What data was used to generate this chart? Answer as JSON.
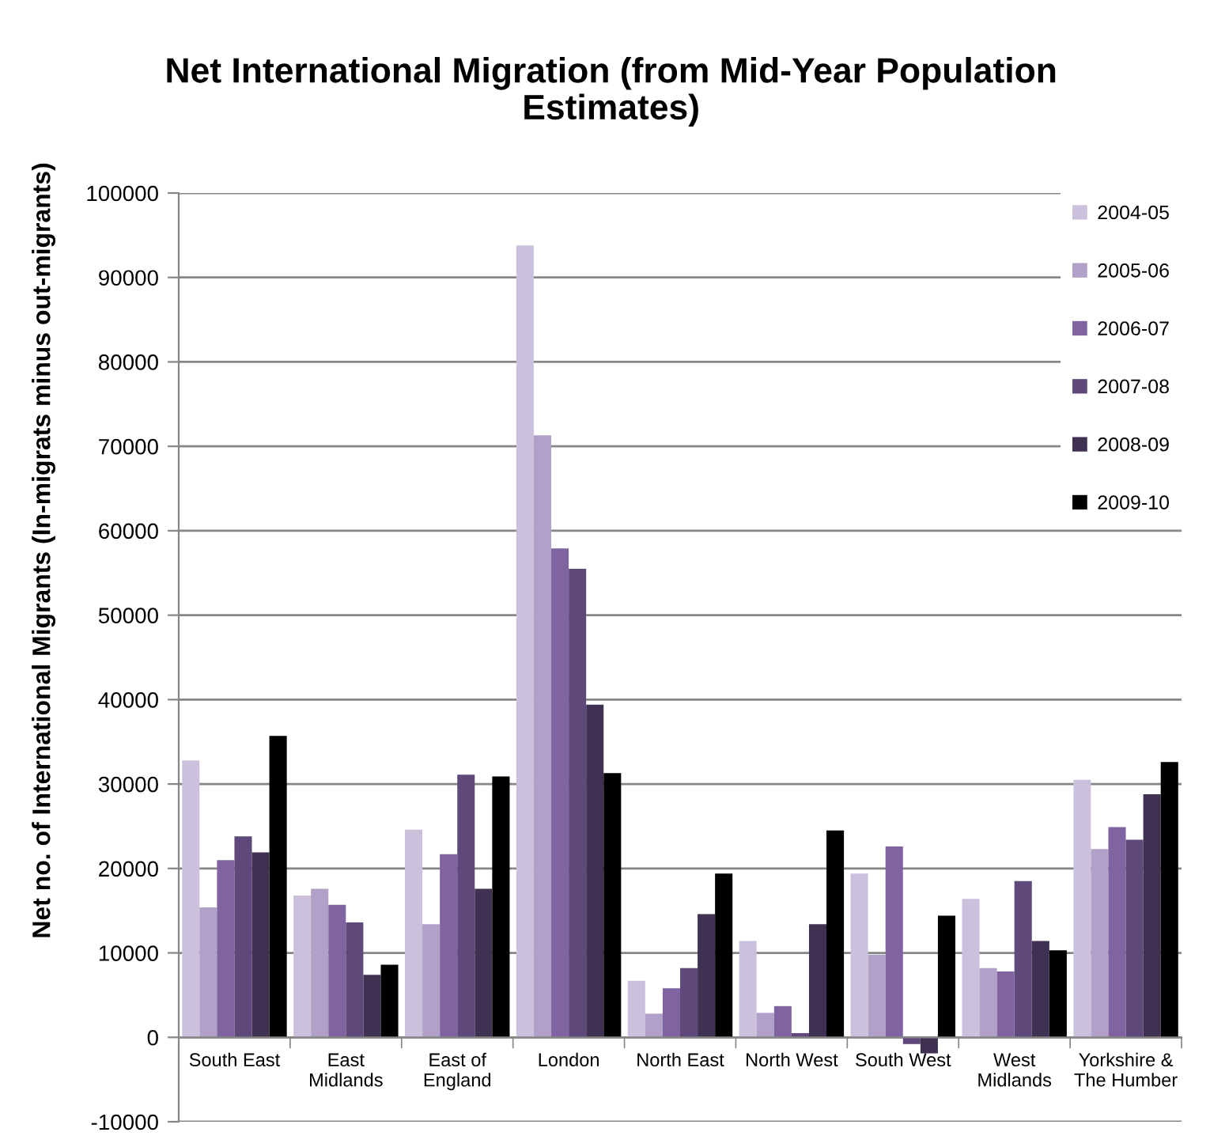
{
  "chart_data": {
    "type": "bar",
    "title": "Net International Migration (from Mid-Year Population Estimates)",
    "ylabel": "Net no. of International Migrants (In-migrats minus out-migrants)",
    "categories": [
      "South East",
      "East Midlands",
      "East of England",
      "London",
      "North East",
      "North West",
      "South West",
      "West Midlands",
      "Yorkshire & The Humber"
    ],
    "series": [
      {
        "name": "2004-05",
        "color": "#ccc1dc",
        "values": [
          32800,
          16800,
          24600,
          93800,
          6700,
          11400,
          19400,
          16400,
          30500
        ]
      },
      {
        "name": "2005-06",
        "color": "#b1a0c7",
        "values": [
          15400,
          17600,
          13400,
          71300,
          2800,
          2900,
          9800,
          8200,
          22300
        ]
      },
      {
        "name": "2006-07",
        "color": "#8064a2",
        "values": [
          21000,
          15700,
          21700,
          57900,
          5800,
          3700,
          22600,
          7800,
          24900
        ]
      },
      {
        "name": "2007-08",
        "color": "#5f497a",
        "values": [
          23800,
          13600,
          31100,
          55500,
          8200,
          500,
          -800,
          18500,
          23400
        ]
      },
      {
        "name": "2008-09",
        "color": "#3f3151",
        "values": [
          21900,
          7400,
          17600,
          39400,
          14600,
          13400,
          -1900,
          11400,
          28800
        ]
      },
      {
        "name": "2009-10",
        "color": "#000000",
        "values": [
          35700,
          8600,
          30900,
          31300,
          19400,
          24500,
          14400,
          10300,
          32600
        ]
      }
    ],
    "ylim": [
      -10000,
      100000
    ],
    "yticks": [
      -10000,
      0,
      10000,
      20000,
      30000,
      40000,
      50000,
      60000,
      70000,
      80000,
      90000,
      100000
    ],
    "grid": "y",
    "legend": "top right"
  }
}
